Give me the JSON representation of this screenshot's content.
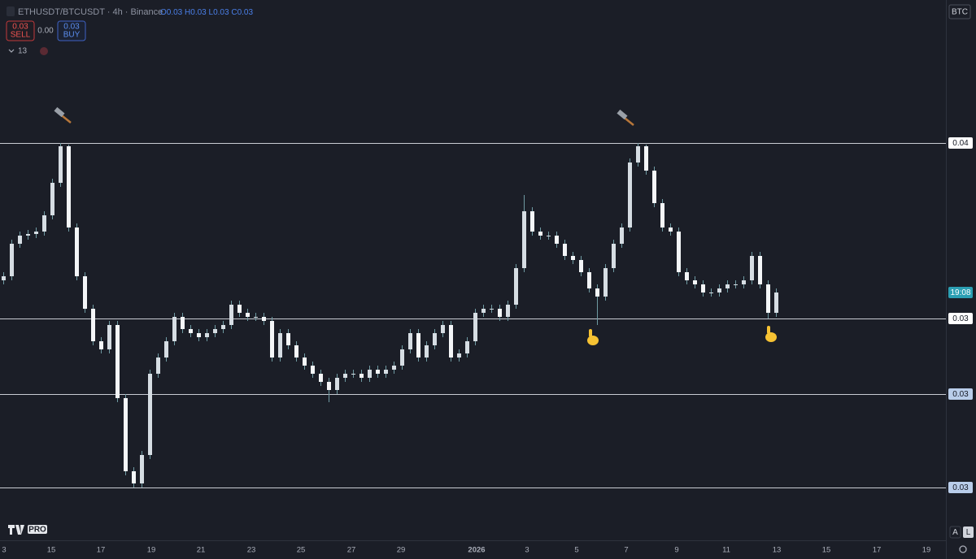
{
  "header": {
    "title": "ETHUSDT/BTCUSDT · 4h · Binance",
    "ohlc": [
      {
        "label": "O",
        "value": "0.03"
      },
      {
        "label": "H",
        "value": "0.03"
      },
      {
        "label": "L",
        "value": "0.03"
      },
      {
        "label": "C",
        "value": "0.03"
      }
    ],
    "sell": {
      "price": "0.03",
      "label": "SELL"
    },
    "spread": "0.00",
    "buy": {
      "price": "0.03",
      "label": "BUY"
    },
    "indicators": "13",
    "currency": "BTC"
  },
  "chart_data": {
    "type": "candlestick",
    "open": [
      0.03347,
      0.03352,
      0.03392,
      0.03402,
      0.03404,
      0.03407,
      0.03427,
      0.03467,
      0.03512,
      0.03412,
      0.03352,
      0.03312,
      0.03272,
      0.03262,
      0.03292,
      0.03202,
      0.03112,
      0.03097,
      0.03132,
      0.03232,
      0.03252,
      0.03272,
      0.03302,
      0.03287,
      0.03282,
      0.03277,
      0.03282,
      0.03287,
      0.03292,
      0.03317,
      0.03307,
      0.03302,
      0.03302,
      0.03297,
      0.03252,
      0.03282,
      0.03267,
      0.03252,
      0.03242,
      0.03232,
      0.03222,
      0.03212,
      0.03227,
      0.03232,
      0.03232,
      0.03227,
      0.03237,
      0.03232,
      0.03237,
      0.03242,
      0.03262,
      0.03282,
      0.03252,
      0.03267,
      0.03282,
      0.03292,
      0.03252,
      0.03257,
      0.03272,
      0.03307,
      0.03312,
      0.03312,
      0.03302,
      0.03317,
      0.03362,
      0.03432,
      0.03407,
      0.03402,
      0.03402,
      0.03392,
      0.03377,
      0.03372,
      0.03357,
      0.03337,
      0.03327,
      0.03362,
      0.03392,
      0.03412,
      0.03492,
      0.03512,
      0.03482,
      0.03442,
      0.03412,
      0.03407,
      0.03357,
      0.03347,
      0.03342,
      0.03332,
      0.03332,
      0.03337,
      0.03342,
      0.03342,
      0.03347,
      0.03377,
      0.03342,
      0.03307
    ],
    "high": [
      0.03357,
      0.03397,
      0.03407,
      0.03409,
      0.03412,
      0.03432,
      0.03472,
      0.03516,
      0.03514,
      0.03417,
      0.03357,
      0.03317,
      0.03277,
      0.03297,
      0.03297,
      0.03207,
      0.03117,
      0.03137,
      0.03237,
      0.03257,
      0.03277,
      0.03307,
      0.03307,
      0.03292,
      0.03287,
      0.03287,
      0.03292,
      0.03297,
      0.03322,
      0.03322,
      0.03312,
      0.03307,
      0.03307,
      0.03302,
      0.03287,
      0.03287,
      0.03272,
      0.03257,
      0.03247,
      0.03237,
      0.03227,
      0.03232,
      0.03237,
      0.03237,
      0.03237,
      0.03242,
      0.03242,
      0.03242,
      0.03247,
      0.03267,
      0.03287,
      0.03287,
      0.03272,
      0.03287,
      0.03297,
      0.03297,
      0.03262,
      0.03277,
      0.03312,
      0.03317,
      0.03317,
      0.03317,
      0.03322,
      0.03367,
      0.03452,
      0.03437,
      0.03412,
      0.03407,
      0.03407,
      0.03397,
      0.03382,
      0.03377,
      0.03362,
      0.03342,
      0.03367,
      0.03397,
      0.03417,
      0.03497,
      0.03516,
      0.03514,
      0.03487,
      0.03447,
      0.03417,
      0.03412,
      0.03362,
      0.03352,
      0.03347,
      0.03337,
      0.03342,
      0.03347,
      0.03347,
      0.03352,
      0.03382,
      0.03382,
      0.03347,
      0.03337
    ],
    "low": [
      0.03342,
      0.03347,
      0.03387,
      0.03397,
      0.03399,
      0.03402,
      0.03422,
      0.03462,
      0.03407,
      0.03347,
      0.03307,
      0.03267,
      0.03257,
      0.03257,
      0.03197,
      0.03107,
      0.03092,
      0.03092,
      0.03127,
      0.03227,
      0.03247,
      0.03267,
      0.03282,
      0.03277,
      0.03272,
      0.03272,
      0.03277,
      0.03282,
      0.03287,
      0.03302,
      0.03297,
      0.03297,
      0.03292,
      0.03247,
      0.03247,
      0.03262,
      0.03247,
      0.03237,
      0.03227,
      0.03217,
      0.03197,
      0.03207,
      0.03222,
      0.03227,
      0.03222,
      0.03222,
      0.03227,
      0.03227,
      0.03232,
      0.03237,
      0.03257,
      0.03247,
      0.03247,
      0.03262,
      0.03277,
      0.03247,
      0.03247,
      0.03252,
      0.03267,
      0.03302,
      0.03307,
      0.03297,
      0.03297,
      0.03312,
      0.03357,
      0.03402,
      0.03397,
      0.03397,
      0.03387,
      0.03372,
      0.03367,
      0.03352,
      0.03332,
      0.03292,
      0.03322,
      0.03357,
      0.03387,
      0.03407,
      0.03487,
      0.03477,
      0.03437,
      0.03407,
      0.03402,
      0.03352,
      0.03342,
      0.03337,
      0.03327,
      0.03327,
      0.03327,
      0.03332,
      0.03337,
      0.03337,
      0.03342,
      0.03337,
      0.033,
      0.03302
    ],
    "close": [
      0.03352,
      0.03392,
      0.03402,
      0.03404,
      0.03407,
      0.03427,
      0.03467,
      0.03512,
      0.03412,
      0.03352,
      0.03312,
      0.03272,
      0.03262,
      0.03292,
      0.03202,
      0.03112,
      0.03097,
      0.03132,
      0.03232,
      0.03252,
      0.03272,
      0.03302,
      0.03287,
      0.03282,
      0.03277,
      0.03282,
      0.03287,
      0.03292,
      0.03317,
      0.03307,
      0.03302,
      0.03302,
      0.03297,
      0.03252,
      0.03282,
      0.03267,
      0.03252,
      0.03242,
      0.03232,
      0.03222,
      0.03212,
      0.03227,
      0.03232,
      0.03232,
      0.03227,
      0.03237,
      0.03232,
      0.03237,
      0.03242,
      0.03262,
      0.03282,
      0.03252,
      0.03267,
      0.03282,
      0.03292,
      0.03252,
      0.03257,
      0.03272,
      0.03307,
      0.03312,
      0.03312,
      0.03302,
      0.03317,
      0.03362,
      0.03432,
      0.03407,
      0.03402,
      0.03402,
      0.03392,
      0.03377,
      0.03372,
      0.03357,
      0.03337,
      0.03327,
      0.03362,
      0.03392,
      0.03412,
      0.03492,
      0.03512,
      0.03482,
      0.03442,
      0.03412,
      0.03407,
      0.03357,
      0.03347,
      0.03342,
      0.03332,
      0.03332,
      0.03337,
      0.03342,
      0.03342,
      0.03347,
      0.03377,
      0.03342,
      0.03307,
      0.03332
    ],
    "xlim": [
      -0.4,
      115.6
    ],
    "xticks": [
      {
        "value": 0.1,
        "label": "3"
      },
      {
        "value": 5.9,
        "label": "15"
      },
      {
        "value": 12,
        "label": "17"
      },
      {
        "value": 18.2,
        "label": "19"
      },
      {
        "value": 24.3,
        "label": "21"
      },
      {
        "value": 30.5,
        "label": "23"
      },
      {
        "value": 36.6,
        "label": "25"
      },
      {
        "value": 42.8,
        "label": "27"
      },
      {
        "value": 48.9,
        "label": "29"
      },
      {
        "value": 58.2,
        "label": "2026"
      },
      {
        "value": 64.4,
        "label": "3"
      },
      {
        "value": 70.5,
        "label": "5"
      },
      {
        "value": 76.6,
        "label": "7"
      },
      {
        "value": 82.8,
        "label": "9"
      },
      {
        "value": 88.9,
        "label": "11"
      },
      {
        "value": 95.1,
        "label": "13"
      },
      {
        "value": 101.2,
        "label": "15"
      },
      {
        "value": 107.4,
        "label": "17"
      },
      {
        "value": 113.5,
        "label": "19"
      }
    ],
    "ylim": [
      0.03027,
      0.03692
    ],
    "yticks": [
      {
        "value": 0.03516,
        "label": "0.04"
      },
      {
        "value": 0.033,
        "label": "0.03"
      },
      {
        "value": 0.03207,
        "label": "0.03"
      },
      {
        "value": 0.03092,
        "label": "0.03"
      }
    ],
    "ytick_colors": [
      "#ffffff",
      "#ffffff",
      "#b9cdea",
      "#b9cdea"
    ],
    "up_color": "#d6dde3",
    "down_color": "#f4f6f8",
    "wick_color": "#6f9aa2",
    "countdown": "19:08"
  },
  "footer": {
    "badge": "PRO",
    "scale_buttons": [
      "A",
      "L"
    ]
  }
}
